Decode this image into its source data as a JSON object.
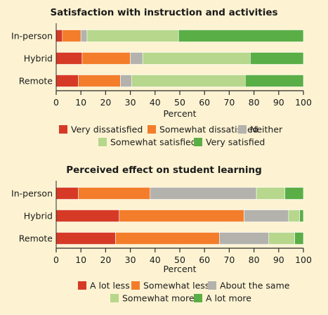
{
  "colors": {
    "background": "#fdf3d2",
    "axis": "#2a2a2a",
    "dark_red": "#d63a26",
    "orange": "#f37d2a",
    "gray": "#b3b2ad",
    "light_green": "#b6d78c",
    "green": "#5aae46"
  },
  "chart_data": [
    {
      "type": "bar",
      "orientation": "horizontal",
      "stacked": true,
      "title": "Satisfaction with instruction and activities",
      "xlabel": "Percent",
      "ylabel": "",
      "xlim": [
        0,
        100
      ],
      "xticks": [
        "0",
        "10",
        "20",
        "30",
        "40",
        "50",
        "60",
        "70",
        "80",
        "90",
        "100"
      ],
      "categories": [
        "In-person",
        "Hybrid",
        "Remote"
      ],
      "series": [
        {
          "name": "Very dissatisfied",
          "color": "#d63a26",
          "values": [
            2.5,
            10.5,
            9
          ]
        },
        {
          "name": "Somewhat dissatisfied",
          "color": "#f37d2a",
          "values": [
            7.5,
            19.5,
            17
          ]
        },
        {
          "name": "Neither",
          "color": "#b3b2ad",
          "values": [
            2.5,
            5,
            4.5
          ]
        },
        {
          "name": "Somewhat satisfied",
          "color": "#b6d78c",
          "values": [
            37,
            43.5,
            46
          ]
        },
        {
          "name": "Very satisfied",
          "color": "#5aae46",
          "values": [
            50.5,
            21.5,
            23.5
          ]
        }
      ],
      "legend_position": "bottom",
      "grid": false
    },
    {
      "type": "bar",
      "orientation": "horizontal",
      "stacked": true,
      "title": "Perceived effect on student learning",
      "xlabel": "Percent",
      "ylabel": "",
      "xlim": [
        0,
        100
      ],
      "xticks": [
        "0",
        "10",
        "20",
        "30",
        "40",
        "50",
        "60",
        "70",
        "80",
        "90",
        "100"
      ],
      "categories": [
        "In-person",
        "Hybrid",
        "Remote"
      ],
      "series": [
        {
          "name": "A lot less",
          "color": "#d63a26",
          "values": [
            9,
            25.5,
            24
          ]
        },
        {
          "name": "Somewhat less",
          "color": "#f37d2a",
          "values": [
            29,
            50.5,
            42
          ]
        },
        {
          "name": "About the same",
          "color": "#b3b2ad",
          "values": [
            43,
            18,
            20
          ]
        },
        {
          "name": "Somewhat more",
          "color": "#b6d78c",
          "values": [
            11.5,
            4.5,
            10.5
          ]
        },
        {
          "name": "A lot more",
          "color": "#5aae46",
          "values": [
            7.5,
            1.5,
            3.5
          ]
        }
      ],
      "legend_position": "bottom",
      "grid": false
    }
  ]
}
